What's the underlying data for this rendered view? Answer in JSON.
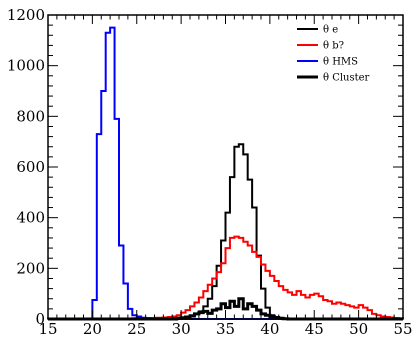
{
  "chart_data": {
    "type": "line",
    "title": "",
    "xlabel": "",
    "ylabel": "",
    "xlim": [
      15,
      55
    ],
    "ylim": [
      0,
      1200
    ],
    "x_ticks": [
      15,
      20,
      25,
      30,
      35,
      40,
      45,
      50,
      55
    ],
    "y_ticks": [
      0,
      200,
      400,
      600,
      800,
      1000,
      1200
    ],
    "grid": false,
    "legend_position": "top-right",
    "bin_edges": [
      15.0,
      15.5,
      16.0,
      16.5,
      17.0,
      17.5,
      18.0,
      18.5,
      19.0,
      19.5,
      20.0,
      20.5,
      21.0,
      21.5,
      22.0,
      22.5,
      23.0,
      23.5,
      24.0,
      24.5,
      25.0,
      25.5,
      26.0,
      26.5,
      27.0,
      27.5,
      28.0,
      28.5,
      29.0,
      29.5,
      30.0,
      30.5,
      31.0,
      31.5,
      32.0,
      32.5,
      33.0,
      33.5,
      34.0,
      34.5,
      35.0,
      35.5,
      36.0,
      36.5,
      37.0,
      37.5,
      38.0,
      38.5,
      39.0,
      39.5,
      40.0,
      40.5,
      41.0,
      41.5,
      42.0,
      42.5,
      43.0,
      43.5,
      44.0,
      44.5,
      45.0,
      45.5,
      46.0,
      46.5,
      47.0,
      47.5,
      48.0,
      48.5,
      49.0,
      49.5,
      50.0,
      50.5,
      51.0,
      51.5,
      52.0,
      52.5,
      53.0,
      53.5,
      54.0,
      54.5,
      55.0
    ],
    "series": [
      {
        "name": "θ e",
        "color": "#000000",
        "line_width": 2,
        "values": [
          0,
          0,
          0,
          0,
          0,
          0,
          0,
          0,
          0,
          0,
          0,
          0,
          0,
          0,
          0,
          0,
          0,
          0,
          0,
          0,
          0,
          0,
          0,
          0,
          0,
          0,
          0,
          0,
          2,
          4,
          6,
          10,
          15,
          20,
          30,
          50,
          80,
          130,
          210,
          310,
          420,
          560,
          680,
          690,
          650,
          550,
          440,
          250,
          120,
          45,
          15,
          5,
          2,
          0,
          0,
          0,
          0,
          0,
          0,
          0,
          0,
          0,
          0,
          0,
          0,
          0,
          0,
          0,
          0,
          0,
          0,
          0,
          0,
          0,
          0,
          0,
          0,
          0,
          0,
          0
        ]
      },
      {
        "name": "θ b?",
        "color": "#ff0000",
        "line_width": 2,
        "values": [
          2,
          2,
          2,
          2,
          2,
          2,
          2,
          2,
          2,
          2,
          2,
          2,
          2,
          2,
          2,
          2,
          2,
          2,
          2,
          3,
          3,
          3,
          4,
          4,
          5,
          5,
          6,
          8,
          10,
          15,
          25,
          35,
          50,
          65,
          85,
          110,
          135,
          160,
          185,
          220,
          280,
          320,
          325,
          320,
          305,
          290,
          265,
          245,
          215,
          190,
          170,
          150,
          130,
          115,
          105,
          95,
          110,
          95,
          85,
          95,
          100,
          90,
          75,
          70,
          60,
          65,
          60,
          55,
          50,
          45,
          55,
          45,
          35,
          20,
          15,
          10,
          8,
          6,
          4,
          3
        ]
      },
      {
        "name": "θ HMS",
        "color": "#0000ff",
        "line_width": 2,
        "values": [
          0,
          0,
          0,
          0,
          0,
          0,
          0,
          0,
          0,
          0,
          75,
          730,
          900,
          1130,
          1150,
          790,
          290,
          140,
          40,
          15,
          10,
          5,
          3,
          2,
          1,
          0,
          0,
          0,
          0,
          0,
          0,
          0,
          0,
          0,
          0,
          0,
          0,
          0,
          0,
          0,
          0,
          0,
          0,
          0,
          0,
          0,
          0,
          0,
          0,
          0,
          0,
          0,
          0,
          0,
          0,
          0,
          0,
          0,
          0,
          0,
          0,
          0,
          0,
          0,
          0,
          0,
          0,
          0,
          0,
          0,
          0,
          0,
          0,
          0,
          0,
          0,
          0,
          0,
          0,
          0
        ]
      },
      {
        "name": "θ Cluster",
        "color": "#000000",
        "line_width": 3,
        "values": [
          0,
          0,
          0,
          0,
          0,
          0,
          0,
          0,
          0,
          0,
          0,
          0,
          0,
          0,
          0,
          0,
          0,
          0,
          0,
          0,
          0,
          0,
          0,
          0,
          0,
          0,
          0,
          0,
          0,
          3,
          5,
          8,
          12,
          20,
          25,
          30,
          22,
          35,
          40,
          60,
          45,
          70,
          50,
          80,
          40,
          60,
          50,
          35,
          20,
          15,
          10,
          6,
          3,
          1,
          0,
          0,
          0,
          0,
          0,
          0,
          0,
          0,
          0,
          0,
          0,
          0,
          0,
          0,
          0,
          0,
          0,
          0,
          0,
          0,
          0,
          0,
          0,
          0,
          0,
          0
        ]
      }
    ]
  }
}
